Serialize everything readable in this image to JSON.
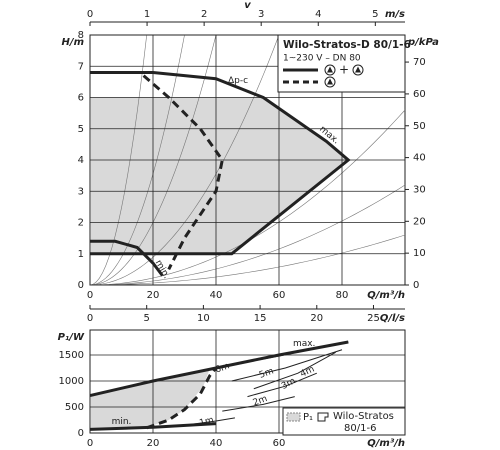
{
  "chart_data": [
    {
      "type": "line",
      "title": "Wilo-Stratos-D 80/1-6",
      "subtitle": "1~230 V – DN 80",
      "xlabel": "Q/m³/h",
      "ylabel": "H/m",
      "y2label": "p/kPa",
      "x2label": "v",
      "x2unit": "m/s",
      "x3label": "Q/l/s",
      "xlim": [
        0,
        100
      ],
      "xticks": [
        0,
        20,
        40,
        60,
        80
      ],
      "ylim": [
        0,
        8
      ],
      "yticks": [
        0,
        1,
        2,
        3,
        4,
        5,
        6,
        7,
        8
      ],
      "y2lim": [
        0,
        78.5
      ],
      "y2ticks": [
        0,
        10,
        20,
        30,
        40,
        50,
        60,
        70
      ],
      "x2lim": [
        0,
        5.52
      ],
      "x2ticks": [
        0,
        1,
        2,
        3,
        4,
        5
      ],
      "x3lim": [
        0,
        27.78
      ],
      "x3ticks": [
        0,
        5,
        10,
        15,
        20,
        25
      ],
      "grid": true,
      "series": [
        {
          "fill": "#d9d9d9",
          "x": [
            0,
            55,
            65,
            75,
            82,
            45,
            0
          ],
          "values": [
            6,
            6,
            5.3,
            4.6,
            4,
            1,
            1
          ]
        },
        {
          "color": "#222222",
          "style": "solid",
          "x": [
            0,
            20,
            40,
            55,
            65,
            75,
            82,
            45,
            0
          ],
          "values": [
            6.8,
            6.8,
            6.6,
            6,
            5.3,
            4.6,
            4,
            1,
            1
          ]
        },
        {
          "color": "#222222",
          "style": "solid",
          "x": [
            0,
            8,
            15,
            20,
            23
          ],
          "values": [
            1.4,
            1.4,
            1.2,
            0.7,
            0.3
          ]
        },
        {
          "color": "#222222",
          "style": "dashed",
          "x": [
            17,
            25,
            35,
            42,
            40,
            30,
            25
          ],
          "values": [
            6.7,
            6,
            5,
            4,
            3,
            1.5,
            0.5
          ]
        }
      ],
      "annotations": [
        "Δp-c",
        "max.",
        "min."
      ],
      "legend_text": "+"
    },
    {
      "type": "line",
      "xlabel": "Q/m³/h",
      "ylabel": "P₁/W",
      "xlim": [
        0,
        100
      ],
      "xticks": [
        0,
        20,
        40,
        60
      ],
      "ylim": [
        0,
        1980
      ],
      "yticks": [
        0,
        500,
        1000,
        1500
      ],
      "grid": true,
      "series": [
        {
          "fill": "#d9d9d9",
          "x": [
            0,
            20,
            38,
            36,
            30,
            25,
            18,
            0
          ],
          "values": [
            720,
            1000,
            1230,
            900,
            450,
            250,
            110,
            90
          ]
        },
        {
          "color": "#222222",
          "style": "solid",
          "x": [
            0,
            20,
            40,
            60,
            82
          ],
          "values": [
            720,
            1000,
            1250,
            1500,
            1750
          ]
        },
        {
          "color": "#222222",
          "style": "solid",
          "x": [
            0,
            20,
            40
          ],
          "values": [
            70,
            110,
            180
          ]
        },
        {
          "color": "#222222",
          "style": "dashed",
          "x": [
            18,
            25,
            30,
            35,
            38,
            40
          ],
          "values": [
            100,
            250,
            450,
            750,
            1100,
            1250
          ]
        },
        {
          "color": "#222222",
          "style": "thin",
          "x": [
            38,
            60,
            82
          ],
          "values": [
            1230,
            1480,
            1750
          ]
        },
        {
          "color": "#222222",
          "style": "thin",
          "x": [
            45,
            62,
            80
          ],
          "values": [
            1000,
            1250,
            1600
          ]
        },
        {
          "color": "#222222",
          "style": "thin",
          "x": [
            52,
            66,
            78
          ],
          "values": [
            850,
            1150,
            1550
          ]
        },
        {
          "color": "#222222",
          "style": "thin",
          "x": [
            50,
            62,
            72
          ],
          "values": [
            700,
            900,
            1150
          ]
        },
        {
          "color": "#222222",
          "style": "thin",
          "x": [
            42,
            55,
            65
          ],
          "values": [
            420,
            550,
            700
          ]
        },
        {
          "color": "#222222",
          "style": "thin",
          "x": [
            30,
            40,
            46
          ],
          "values": [
            150,
            230,
            290
          ]
        }
      ],
      "annotations": [
        "max.",
        "6m",
        "5m",
        "4m",
        "3m",
        "2m",
        "1m",
        "min."
      ],
      "legend_swatch": "P₁",
      "legend_text": [
        "Wilo-Stratos",
        "80/1-6"
      ]
    }
  ]
}
